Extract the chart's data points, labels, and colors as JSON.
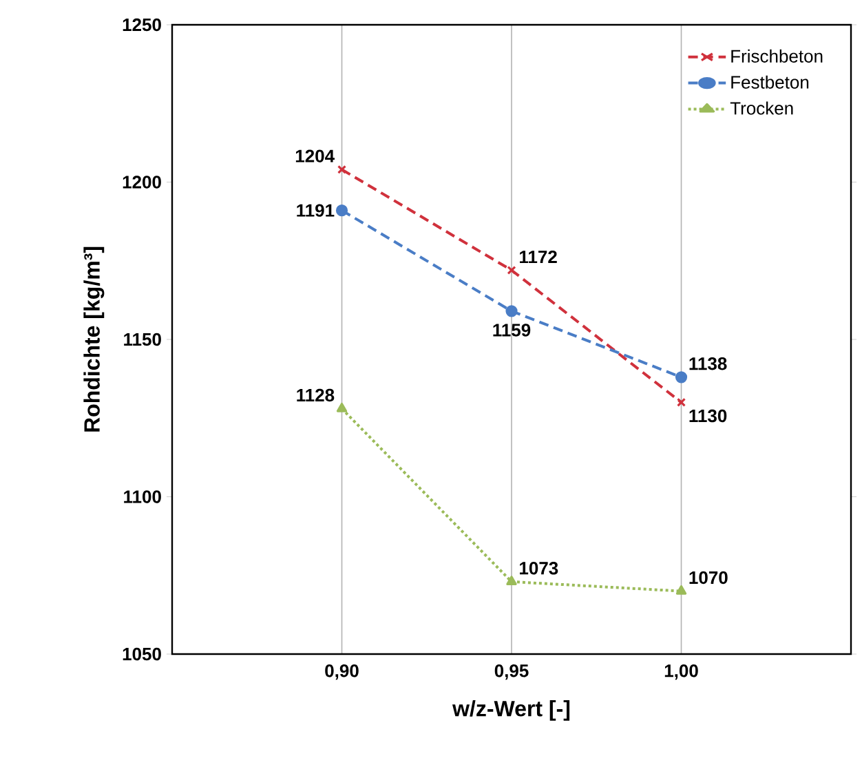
{
  "chart_data": {
    "type": "line",
    "xlabel": "w/z-Wert [-]",
    "ylabel": "Rohdichte [kg/m³]",
    "x": [
      0.9,
      0.95,
      1.0
    ],
    "series": [
      {
        "name": "Frischbeton",
        "color": "#d0313c",
        "values": [
          1204,
          1172,
          1130
        ],
        "marker": "cross",
        "line_style": "dashed",
        "value_labels": [
          "1204",
          "1172",
          "1130"
        ]
      },
      {
        "name": "Festbeton",
        "color": "#4a7dc6",
        "values": [
          1191,
          1159,
          1138
        ],
        "marker": "circle",
        "line_style": "dashed",
        "value_labels": [
          "1191",
          "1159",
          "1138"
        ]
      },
      {
        "name": "Trocken",
        "color": "#9bbb59",
        "values": [
          1128,
          1073,
          1070
        ],
        "marker": "triangle",
        "line_style": "dotted",
        "value_labels": [
          "1128",
          "1073",
          "1070"
        ]
      }
    ],
    "xlim": [
      0.85,
      1.05
    ],
    "ylim": [
      1050,
      1250
    ],
    "xticks": [
      {
        "value": 0.9,
        "label": "0,90"
      },
      {
        "value": 0.95,
        "label": "0,95"
      },
      {
        "value": 1.0,
        "label": "1,00"
      }
    ],
    "yticks": [
      1050,
      1100,
      1150,
      1200,
      1250
    ],
    "grid": "x",
    "legend": "top right"
  }
}
